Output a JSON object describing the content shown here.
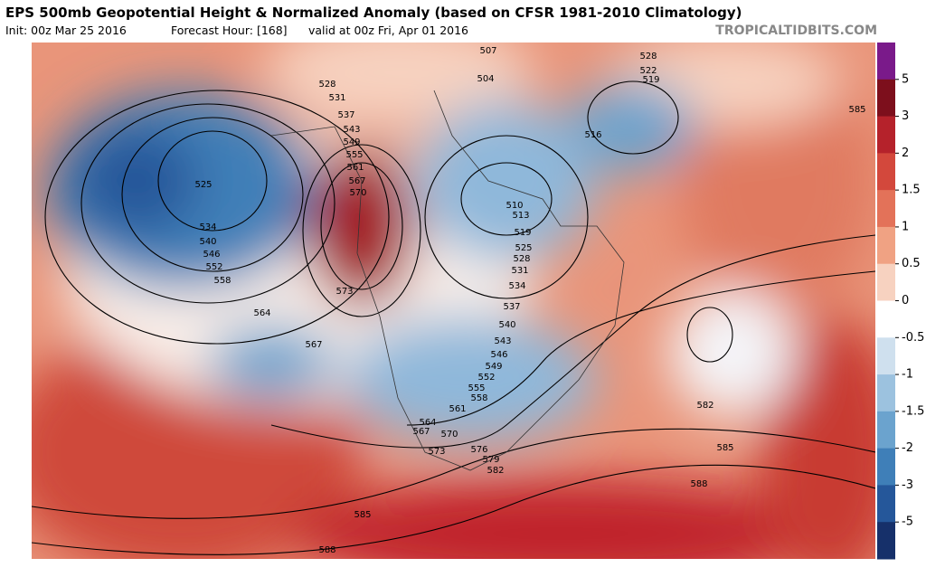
{
  "header": {
    "title": "EPS 500mb Geopotential Height & Normalized Anomaly (based on CFSR 1981-2010 Climatology)",
    "init": "Init: 00z Mar 25 2016",
    "forecast_hour": "Forecast Hour: [168]",
    "valid": "valid at 00z Fri, Apr 01 2016",
    "brand": "TROPICALTIDBITS.COM"
  },
  "colorbar": {
    "levels": [
      5,
      3,
      2,
      1.5,
      1,
      0.5,
      0,
      -0.5,
      -1,
      -1.5,
      -2,
      -3,
      -5
    ],
    "colors": [
      "#7a1a8a",
      "#7d0f1c",
      "#b5222b",
      "#d3483c",
      "#e37259",
      "#f0a283",
      "#f7d2c0",
      "#ffffff",
      "#cfe0ee",
      "#9cc2df",
      "#6ba3ce",
      "#3f7fb8",
      "#25579a",
      "#16306a"
    ]
  },
  "map": {
    "contour_labels": [
      528,
      531,
      537,
      543,
      549,
      555,
      561,
      567,
      570,
      573,
      525,
      534,
      540,
      546,
      552,
      558,
      564,
      567,
      507,
      504,
      516,
      528,
      522,
      519,
      585,
      510,
      513,
      519,
      525,
      528,
      531,
      534,
      537,
      540,
      543,
      546,
      549,
      552,
      555,
      558,
      561,
      564,
      567,
      570,
      573,
      576,
      579,
      582,
      582,
      585,
      588,
      585,
      588
    ]
  }
}
